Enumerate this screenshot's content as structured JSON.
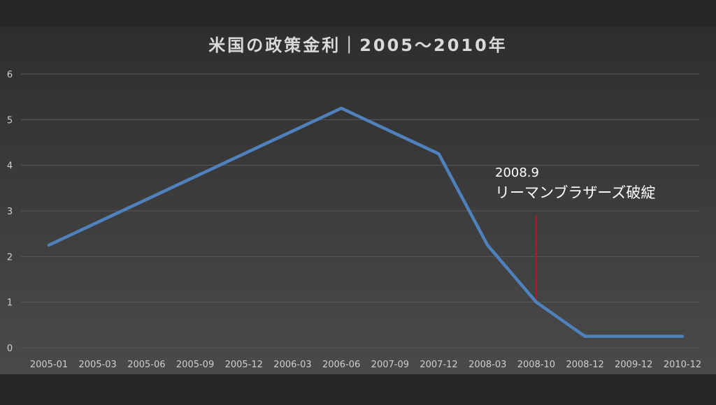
{
  "chart_data": {
    "type": "line",
    "title": "米国の政策金利｜2005〜2010年",
    "categories": [
      "2005-01",
      "2005-03",
      "2005-06",
      "2005-09",
      "2005-12",
      "2006-03",
      "2006-06",
      "2007-09",
      "2007-12",
      "2008-03",
      "2008-10",
      "2008-12",
      "2009-12",
      "2010-12"
    ],
    "series": [
      {
        "values": [
          2.25,
          2.75,
          3.25,
          3.75,
          4.25,
          4.75,
          5.25,
          4.75,
          4.25,
          2.25,
          1.0,
          0.25,
          0.25,
          0.25
        ],
        "color": "#4f81bd"
      }
    ],
    "ylim": [
      0,
      6
    ],
    "yticks": [
      0,
      1,
      2,
      3,
      4,
      5,
      6
    ],
    "grid": true,
    "annotation": {
      "date_label": "2008.9",
      "event_label": "リーマンブラザーズ破綻",
      "x_category": "2008-10",
      "y_top": 2.9,
      "color": "#c0102a"
    },
    "colors": {
      "background": "#262626",
      "plot_top": "#2e2e2e",
      "plot_bottom": "#4a4a4a",
      "grid": "#5a5a5a",
      "tick_text": "#cfcfcf",
      "title_text": "#d9d9d9"
    }
  }
}
